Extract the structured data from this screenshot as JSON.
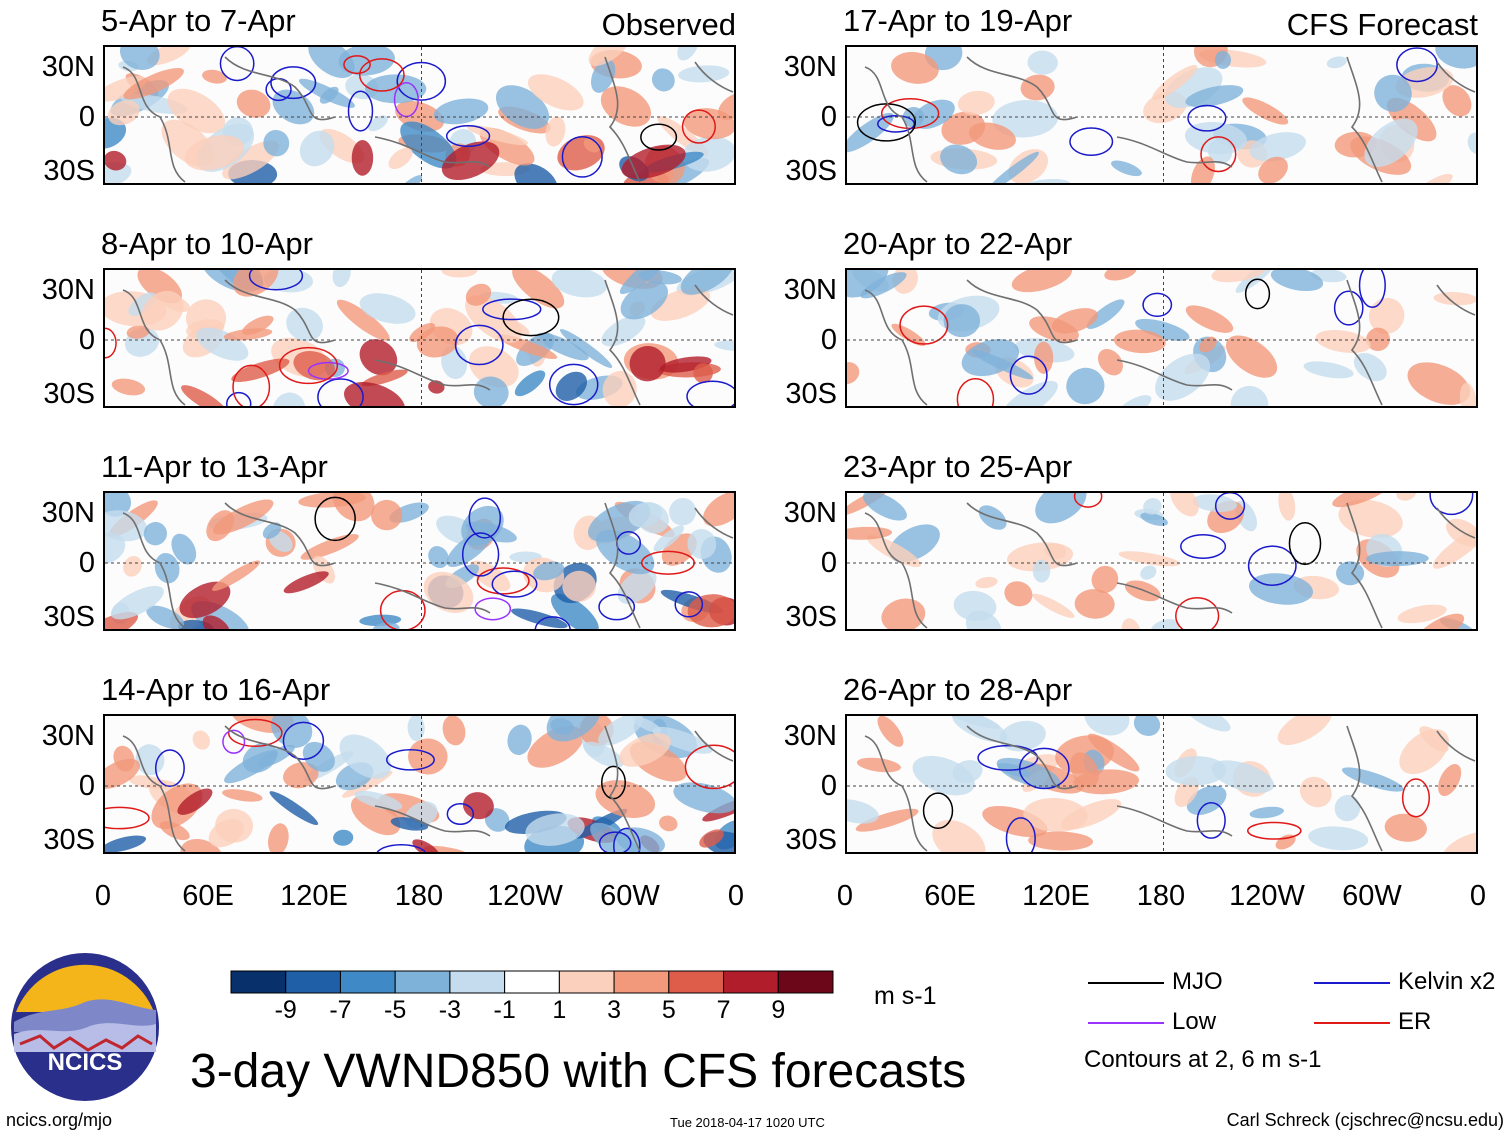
{
  "chart_data": {
    "type": "heatmap",
    "title": "3-day VWND850 with CFS forecasts",
    "variable": "VWND850",
    "units": "m s-1",
    "columns": [
      {
        "label": "Observed",
        "panels": [
          "5-Apr to 7-Apr",
          "8-Apr to 10-Apr",
          "11-Apr to 13-Apr",
          "14-Apr to 16-Apr"
        ]
      },
      {
        "label": "CFS Forecast",
        "panels": [
          "17-Apr to 19-Apr",
          "20-Apr to 22-Apr",
          "23-Apr to 25-Apr",
          "26-Apr to 28-Apr"
        ]
      }
    ],
    "y_ticks": [
      "30N",
      "0",
      "30S"
    ],
    "x_ticks": [
      "0",
      "60E",
      "120E",
      "180",
      "120W",
      "60W",
      "0"
    ],
    "colorbar": {
      "ticks": [
        "-9",
        "-7",
        "-5",
        "-3",
        "-1",
        "1",
        "3",
        "5",
        "7",
        "9"
      ],
      "colors": [
        "#08306b",
        "#1f5fa8",
        "#3f8ac6",
        "#7fb2d9",
        "#c4dcee",
        "#ffffff",
        "#fbd0bc",
        "#f3997b",
        "#dd5c4a",
        "#b11d2b",
        "#6b0718"
      ]
    },
    "legend": [
      {
        "label": "MJO",
        "color": "#000000"
      },
      {
        "label": "Kelvin x2",
        "color": "#1a1acc"
      },
      {
        "label": "Low",
        "color": "#9933ff"
      },
      {
        "label": "ER",
        "color": "#e01818"
      }
    ],
    "contour_note": "Contours at 2, 6 m s-1"
  },
  "footer": {
    "logo_text": "NCICS",
    "url": "ncics.org/mjo",
    "timestamp": "Tue 2018-04-17 1020 UTC",
    "credit": "Carl Schreck (cjschrec@ncsu.edu)"
  }
}
